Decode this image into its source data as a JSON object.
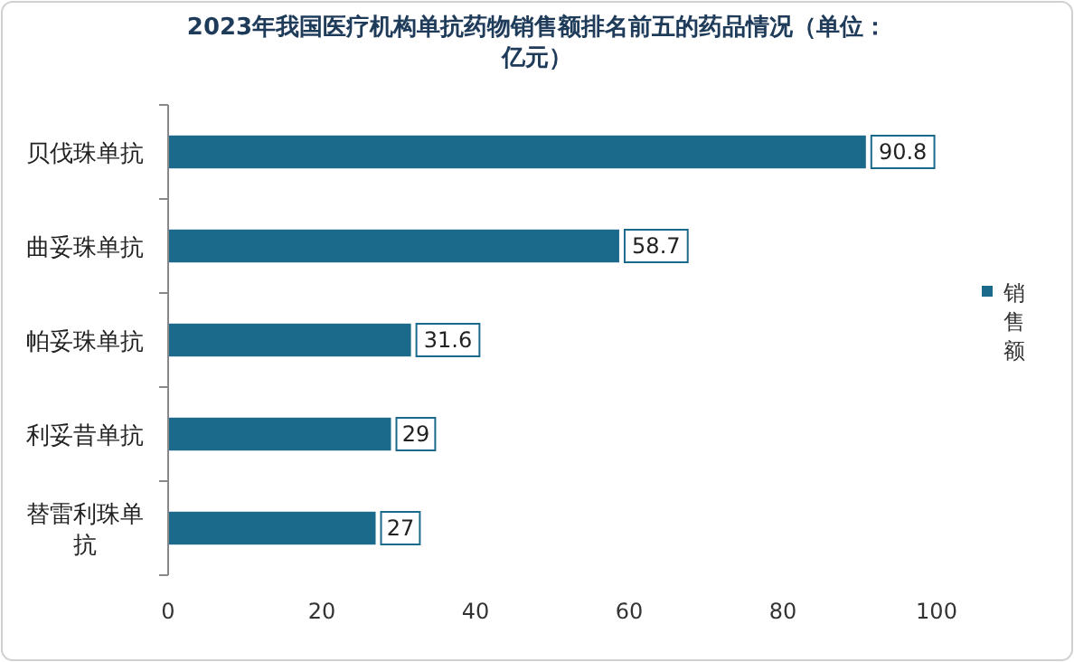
{
  "chart_data": {
    "type": "bar",
    "orientation": "horizontal",
    "title": "2023年我国医疗机构单抗药物销售额排名前五的药品情况（单位：亿元）",
    "categories": [
      "贝伐珠单抗",
      "曲妥珠单抗",
      "帕妥珠单抗",
      "利妥昔单抗",
      "替雷利珠单抗"
    ],
    "series": [
      {
        "name": "销售额",
        "color": "#1b6a8c",
        "values": [
          90.8,
          58.7,
          31.6,
          29,
          27
        ]
      }
    ],
    "xlim": [
      0,
      100
    ],
    "xticks": [
      0,
      20,
      40,
      60,
      80,
      100
    ],
    "data_labels": true,
    "legend": "right",
    "grid": false
  }
}
